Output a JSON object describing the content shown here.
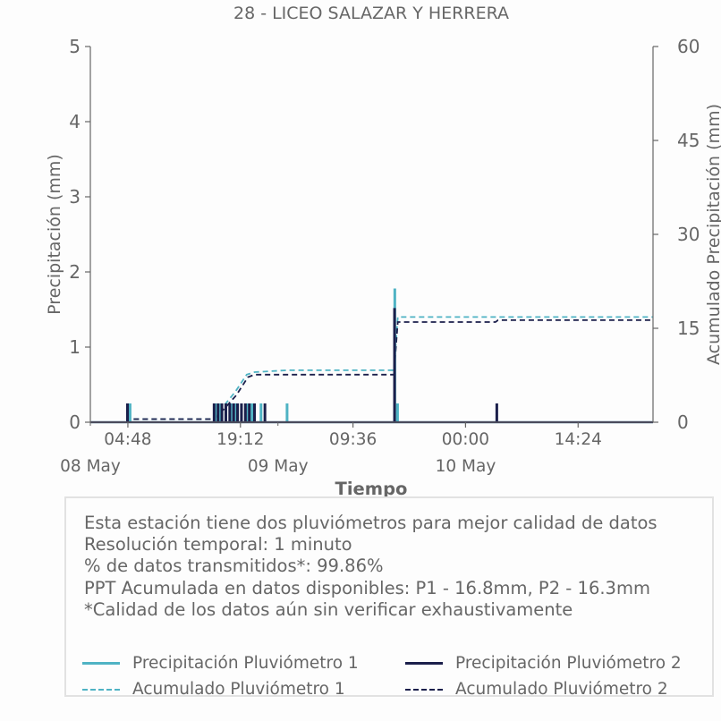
{
  "chart_data": {
    "type": "line",
    "title": "28 - LICEO SALAZAR Y HERRERA",
    "xlabel": "Tiempo",
    "ylabel": "Precipitación (mm)",
    "y2label": "Acumulado Precipitación (mm)",
    "ylim": [
      0,
      5
    ],
    "y2lim": [
      0,
      60
    ],
    "yticks": [
      "0",
      "1",
      "2",
      "3",
      "4",
      "5"
    ],
    "y2ticks": [
      "0",
      "15",
      "30",
      "45",
      "60"
    ],
    "xlim": [
      "2024-05-08 00:00",
      "2024-05-10 23:59"
    ],
    "xticks": [
      {
        "x": "2024-05-08 04:48",
        "label": "04:48"
      },
      {
        "x": "2024-05-08 19:12",
        "label": "19:12"
      },
      {
        "x": "2024-05-09 09:36",
        "label": "09:36"
      },
      {
        "x": "2024-05-10 00:00",
        "label": "00:00"
      },
      {
        "x": "2024-05-10 14:24",
        "label": "14:24"
      }
    ],
    "date_labels": [
      {
        "x": "2024-05-08 00:00",
        "label": "08 May"
      },
      {
        "x": "2024-05-09 00:00",
        "label": "09 May"
      },
      {
        "x": "2024-05-10 00:00",
        "label": "10 May"
      }
    ],
    "series": [
      {
        "name": "Precipitación Pluviómetro 1",
        "axis": "left",
        "style": "solid",
        "color": "#4fb3c4",
        "points": [
          {
            "x": "2024-05-08 05:05",
            "y": 0.25
          },
          {
            "x": "2024-05-08 16:00",
            "y": 0.25
          },
          {
            "x": "2024-05-08 16:40",
            "y": 0.25
          },
          {
            "x": "2024-05-08 17:20",
            "y": 0.25
          },
          {
            "x": "2024-05-08 18:00",
            "y": 0.25
          },
          {
            "x": "2024-05-08 18:40",
            "y": 0.25
          },
          {
            "x": "2024-05-08 19:20",
            "y": 0.25
          },
          {
            "x": "2024-05-08 20:00",
            "y": 0.25
          },
          {
            "x": "2024-05-08 20:40",
            "y": 0.25
          },
          {
            "x": "2024-05-08 21:50",
            "y": 0.25
          },
          {
            "x": "2024-05-09 01:10",
            "y": 0.25
          },
          {
            "x": "2024-05-09 14:57",
            "y": 1.78
          },
          {
            "x": "2024-05-09 15:18",
            "y": 0.25
          }
        ]
      },
      {
        "name": "Precipitación Pluviómetro 2",
        "axis": "left",
        "style": "solid",
        "color": "#1b1f4b",
        "points": [
          {
            "x": "2024-05-08 04:45",
            "y": 0.25
          },
          {
            "x": "2024-05-08 15:50",
            "y": 0.25
          },
          {
            "x": "2024-05-08 16:20",
            "y": 0.25
          },
          {
            "x": "2024-05-08 16:50",
            "y": 0.25
          },
          {
            "x": "2024-05-08 17:20",
            "y": 0.25
          },
          {
            "x": "2024-05-08 17:50",
            "y": 0.25
          },
          {
            "x": "2024-05-08 18:20",
            "y": 0.25
          },
          {
            "x": "2024-05-08 18:50",
            "y": 0.25
          },
          {
            "x": "2024-05-08 19:20",
            "y": 0.25
          },
          {
            "x": "2024-05-08 19:50",
            "y": 0.25
          },
          {
            "x": "2024-05-08 20:20",
            "y": 0.25
          },
          {
            "x": "2024-05-08 21:00",
            "y": 0.25
          },
          {
            "x": "2024-05-08 22:20",
            "y": 0.25
          },
          {
            "x": "2024-05-09 14:55",
            "y": 1.52
          },
          {
            "x": "2024-05-10 04:00",
            "y": 0.25
          }
        ]
      },
      {
        "name": "Acumulado Pluviómetro 1",
        "axis": "right",
        "style": "dashed",
        "color": "#4fb3c4",
        "points": [
          {
            "x": "2024-05-08 00:00",
            "y": 0
          },
          {
            "x": "2024-05-08 04:50",
            "y": 0
          },
          {
            "x": "2024-05-08 05:10",
            "y": 0.5
          },
          {
            "x": "2024-05-08 15:50",
            "y": 0.5
          },
          {
            "x": "2024-05-08 17:00",
            "y": 2.5
          },
          {
            "x": "2024-05-08 18:30",
            "y": 4.8
          },
          {
            "x": "2024-05-08 20:00",
            "y": 7.6
          },
          {
            "x": "2024-05-08 21:00",
            "y": 8.0
          },
          {
            "x": "2024-05-09 01:10",
            "y": 8.3
          },
          {
            "x": "2024-05-09 14:50",
            "y": 8.3
          },
          {
            "x": "2024-05-09 15:20",
            "y": 16.8
          },
          {
            "x": "2024-05-10 23:59",
            "y": 16.8
          }
        ]
      },
      {
        "name": "Acumulado Pluviómetro 2",
        "axis": "right",
        "style": "dashed",
        "color": "#1b1f4b",
        "points": [
          {
            "x": "2024-05-08 00:00",
            "y": 0
          },
          {
            "x": "2024-05-08 04:40",
            "y": 0
          },
          {
            "x": "2024-05-08 05:00",
            "y": 0.5
          },
          {
            "x": "2024-05-08 15:50",
            "y": 0.5
          },
          {
            "x": "2024-05-08 17:10",
            "y": 2.2
          },
          {
            "x": "2024-05-08 18:40",
            "y": 4.3
          },
          {
            "x": "2024-05-08 20:10",
            "y": 7.2
          },
          {
            "x": "2024-05-08 21:00",
            "y": 7.6
          },
          {
            "x": "2024-05-09 14:50",
            "y": 7.6
          },
          {
            "x": "2024-05-09 15:20",
            "y": 16.0
          },
          {
            "x": "2024-05-10 03:50",
            "y": 16.0
          },
          {
            "x": "2024-05-10 04:10",
            "y": 16.3
          },
          {
            "x": "2024-05-10 23:59",
            "y": 16.3
          }
        ]
      }
    ]
  },
  "info": {
    "line1": "Esta estación tiene dos pluviómetros para mejor calidad de datos",
    "line2": "Resolución temporal: 1 minuto",
    "line3": "% de datos transmitidos*: 99.86%",
    "line4": "PPT Acumulada en datos disponibles: P1 - 16.8mm, P2 - 16.3mm",
    "line5": "*Calidad de los datos aún sin verificar exhaustivamente"
  },
  "legend": {
    "p1": "Precipitación Pluviómetro 1",
    "p2": "Precipitación Pluviómetro 2",
    "a1": "Acumulado Pluviómetro 1",
    "a2": "Acumulado Pluviómetro 2"
  },
  "colors": {
    "p1": "#4fb3c4",
    "p2": "#1b1f4b",
    "axis": "#666666",
    "text": "#666666"
  }
}
